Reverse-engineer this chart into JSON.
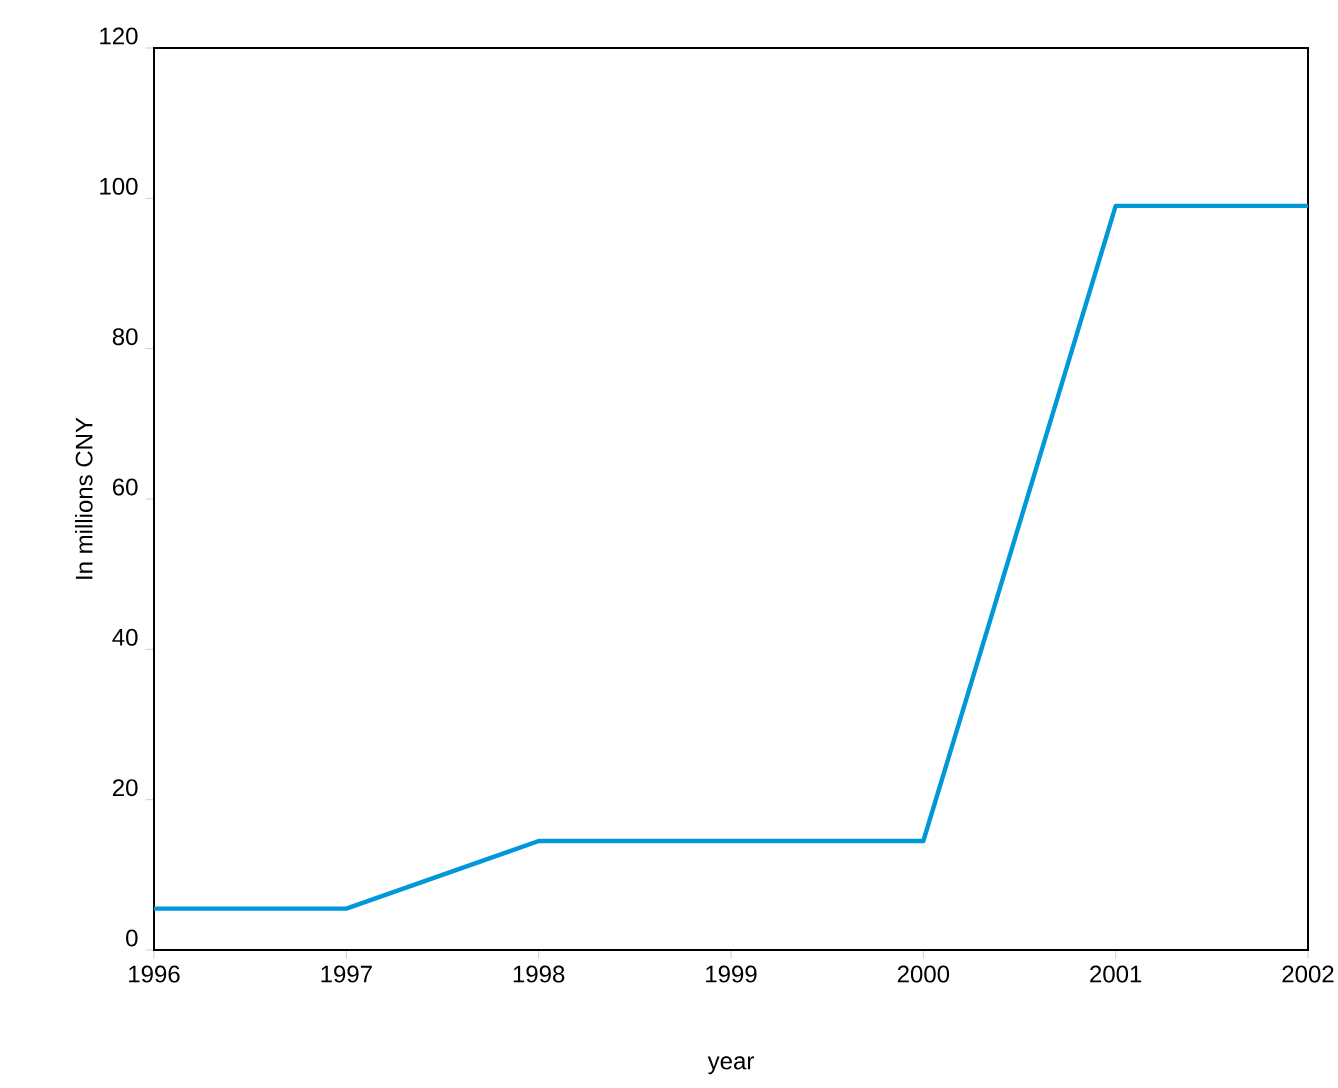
{
  "chart_data": {
    "type": "line",
    "xlabel": "year",
    "ylabel": "In millions CNY",
    "x": [
      1996,
      1997,
      1998,
      1999,
      2000,
      2001,
      2002
    ],
    "series": [
      {
        "color": "#0098d8",
        "values": [
          5.5,
          5.5,
          14.5,
          14.5,
          14.5,
          99,
          99
        ]
      }
    ],
    "xlim": [
      1996,
      2002
    ],
    "xticks": [
      1996,
      1997,
      1998,
      1999,
      2000,
      2001,
      2002
    ],
    "ylim": [
      0,
      120
    ],
    "yticks": [
      0,
      20,
      40,
      60,
      80,
      100,
      120
    ],
    "grid": false,
    "marker": "none",
    "line_style": "solid"
  }
}
